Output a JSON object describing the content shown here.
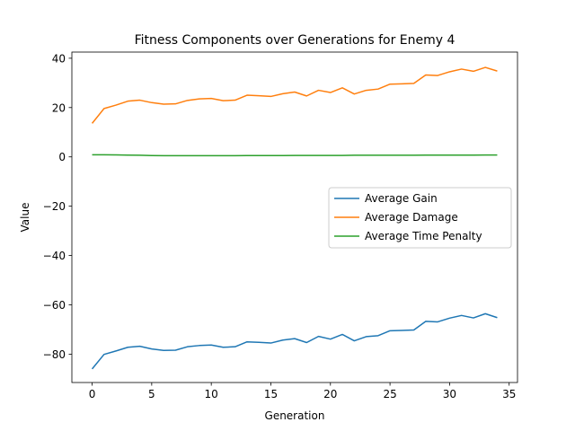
{
  "chart_data": {
    "type": "line",
    "title": "Fitness Components over Generations for Enemy 4",
    "xlabel": "Generation",
    "ylabel": "Value",
    "xlim": [
      -1.7,
      35.7
    ],
    "ylim": [
      -91.5,
      42.5
    ],
    "xticks": [
      0,
      5,
      10,
      15,
      20,
      25,
      30,
      35
    ],
    "yticks": [
      -80,
      -60,
      -40,
      -20,
      0,
      20,
      40
    ],
    "ytick_labels": [
      "−80",
      "−60",
      "−40",
      "−20",
      "0",
      "20",
      "40"
    ],
    "grid": false,
    "legend_position": "center-right",
    "x": [
      0,
      1,
      2,
      3,
      4,
      5,
      6,
      7,
      8,
      9,
      10,
      11,
      12,
      13,
      14,
      15,
      16,
      17,
      18,
      19,
      20,
      21,
      22,
      23,
      24,
      25,
      26,
      27,
      28,
      29,
      30,
      31,
      32,
      33,
      34
    ],
    "series": [
      {
        "name": "Average Gain",
        "color": "#1f77b4",
        "values": [
          -86.0,
          -80.1,
          -78.7,
          -77.2,
          -76.8,
          -77.9,
          -78.5,
          -78.4,
          -77.0,
          -76.5,
          -76.3,
          -77.2,
          -77.0,
          -75.0,
          -75.2,
          -75.5,
          -74.3,
          -73.7,
          -75.3,
          -72.8,
          -73.9,
          -72.0,
          -74.6,
          -72.9,
          -72.5,
          -70.5,
          -70.4,
          -70.2,
          -66.7,
          -66.9,
          -65.4,
          -64.3,
          -65.3,
          -63.6,
          -65.2
        ]
      },
      {
        "name": "Average Damage",
        "color": "#ff7f0e",
        "values": [
          13.6,
          19.6,
          21.0,
          22.6,
          23.0,
          22.0,
          21.4,
          21.5,
          22.9,
          23.5,
          23.7,
          22.8,
          23.0,
          25.0,
          24.8,
          24.5,
          25.6,
          26.3,
          24.7,
          27.0,
          26.1,
          28.0,
          25.5,
          27.0,
          27.5,
          29.5,
          29.6,
          29.8,
          33.2,
          33.0,
          34.5,
          35.6,
          34.7,
          36.3,
          34.8
        ]
      },
      {
        "name": "Average Time Penalty",
        "color": "#2ca02c",
        "values": [
          0.85,
          0.85,
          0.8,
          0.7,
          0.65,
          0.55,
          0.5,
          0.5,
          0.5,
          0.5,
          0.5,
          0.5,
          0.5,
          0.55,
          0.55,
          0.55,
          0.55,
          0.6,
          0.6,
          0.6,
          0.6,
          0.6,
          0.65,
          0.65,
          0.65,
          0.65,
          0.65,
          0.65,
          0.7,
          0.7,
          0.7,
          0.7,
          0.7,
          0.75,
          0.75
        ]
      }
    ]
  }
}
